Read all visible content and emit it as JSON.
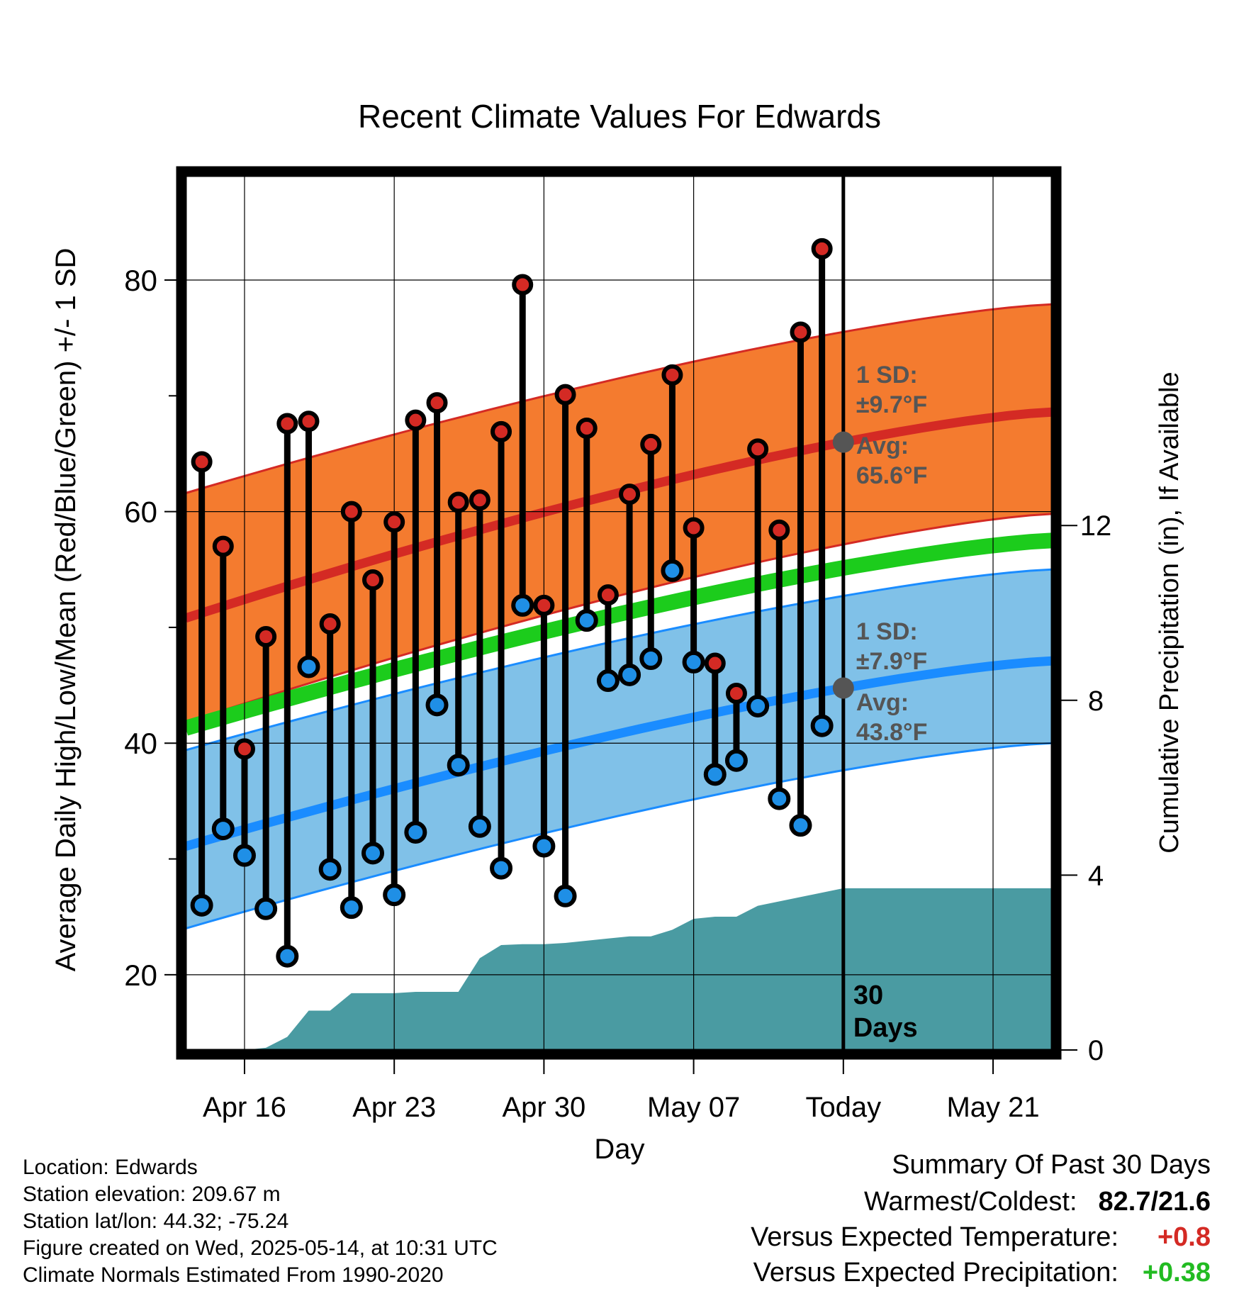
{
  "chart_data": {
    "type": "line",
    "title": "Recent Climate Values For Edwards",
    "xlabel": "Day",
    "ylabel": "Average Daily High/Low/Mean (Red/Blue/Green) +/- 1 SD",
    "y2label": "Cumulative Precipitation (in), If Available",
    "ylim": [
      13.5,
      89
    ],
    "y2lim": [
      0,
      20
    ],
    "y_ticks": [
      "20",
      "40",
      "60",
      "80"
    ],
    "y2_ticks": [
      "0",
      "4",
      "8",
      "12"
    ],
    "x_tick_labels": [
      "Apr 16",
      "Apr 23",
      "Apr 30",
      "May 07",
      "Today",
      "May 21"
    ],
    "x_tick_days": [
      1,
      8,
      15,
      22,
      29,
      36
    ],
    "grid": true,
    "day_range": [
      -1.75,
      38.75
    ],
    "today_day": 29,
    "today_label": "30\nDays",
    "observed": {
      "days": [
        -1,
        0,
        1,
        2,
        3,
        4,
        5,
        6,
        7,
        8,
        9,
        10,
        11,
        12,
        13,
        14,
        15,
        16,
        17,
        18,
        19,
        20,
        21,
        22,
        23,
        24,
        25,
        26,
        27,
        28
      ],
      "high": [
        64.3,
        57.0,
        39.5,
        49.2,
        67.6,
        67.8,
        50.3,
        60.0,
        54.1,
        59.1,
        67.9,
        69.4,
        60.8,
        61.0,
        66.9,
        79.6,
        51.9,
        70.1,
        67.2,
        52.8,
        61.5,
        65.8,
        71.8,
        58.6,
        46.9,
        44.3,
        65.4,
        58.4,
        75.5,
        82.7
      ],
      "low": [
        26.0,
        32.6,
        30.3,
        25.7,
        21.6,
        46.6,
        29.1,
        25.8,
        30.5,
        26.9,
        32.3,
        43.3,
        38.1,
        32.8,
        29.2,
        51.9,
        31.1,
        26.8,
        50.6,
        45.4,
        45.9,
        47.3,
        54.9,
        47.0,
        37.3,
        38.5,
        43.2,
        35.2,
        32.9,
        41.5
      ]
    },
    "normals": {
      "days": [
        -1.75,
        38.75
      ],
      "high_avg": [
        50.8,
        68.6
      ],
      "high_sd_upper": [
        61.6,
        77.9
      ],
      "high_sd_lower": [
        41.8,
        59.8
      ],
      "mean_avg": [
        41.3,
        57.5
      ],
      "low_avg": [
        31.1,
        47.1
      ],
      "low_sd_upper": [
        39.4,
        55.0
      ],
      "low_sd_lower": [
        24.0,
        40.0
      ]
    },
    "precip": {
      "days": [
        -1.75,
        1,
        2,
        3,
        4,
        5,
        6,
        7,
        8,
        9,
        10,
        11,
        12,
        13,
        14,
        15,
        16,
        17,
        18,
        19,
        20,
        21,
        22,
        23,
        24,
        25,
        29,
        38.75
      ],
      "cum": [
        0,
        0,
        0.05,
        0.3,
        0.9,
        0.9,
        1.3,
        1.3,
        1.3,
        1.33,
        1.33,
        1.33,
        2.1,
        2.4,
        2.42,
        2.42,
        2.45,
        2.5,
        2.55,
        2.6,
        2.6,
        2.75,
        3.0,
        3.05,
        3.05,
        3.3,
        3.7,
        3.7
      ]
    },
    "annotations": {
      "high_sd": "1 SD:",
      "high_sd_value": "±9.7°F",
      "high_avg": "Avg:",
      "high_avg_value": "65.6°F",
      "low_sd": "1 SD:",
      "low_sd_value": "±7.9°F",
      "low_avg": "Avg:",
      "low_avg_value": "43.8°F"
    },
    "colors": {
      "high_band": "#f47b2f",
      "high_line": "#d42a24",
      "mean_line": "#1ccc1c",
      "low_band": "#80c1e8",
      "low_line": "#1a8cff",
      "precip": "#4a9ba2",
      "high_dot": "#d42a24",
      "low_dot": "#1f8fe6",
      "annotation_text": "#555555"
    }
  },
  "metadata": {
    "location": "Location: Edwards",
    "elevation": "Station elevation: 209.67 m",
    "latlon": "Station lat/lon: 44.32; -75.24",
    "created": "Figure created on Wed, 2025-05-14, at 10:31 UTC",
    "normals": "Climate Normals Estimated From 1990-2020"
  },
  "summary": {
    "title": "Summary Of Past 30 Days",
    "warmest_coldest_label": "Warmest/Coldest:",
    "warmest_coldest_value": "82.7/21.6",
    "temp_label": "Versus Expected Temperature:",
    "temp_value": "+0.8",
    "temp_color": "#d42a24",
    "precip_label": "Versus Expected Precipitation:",
    "precip_value": "+0.38",
    "precip_color": "#22bb22"
  }
}
